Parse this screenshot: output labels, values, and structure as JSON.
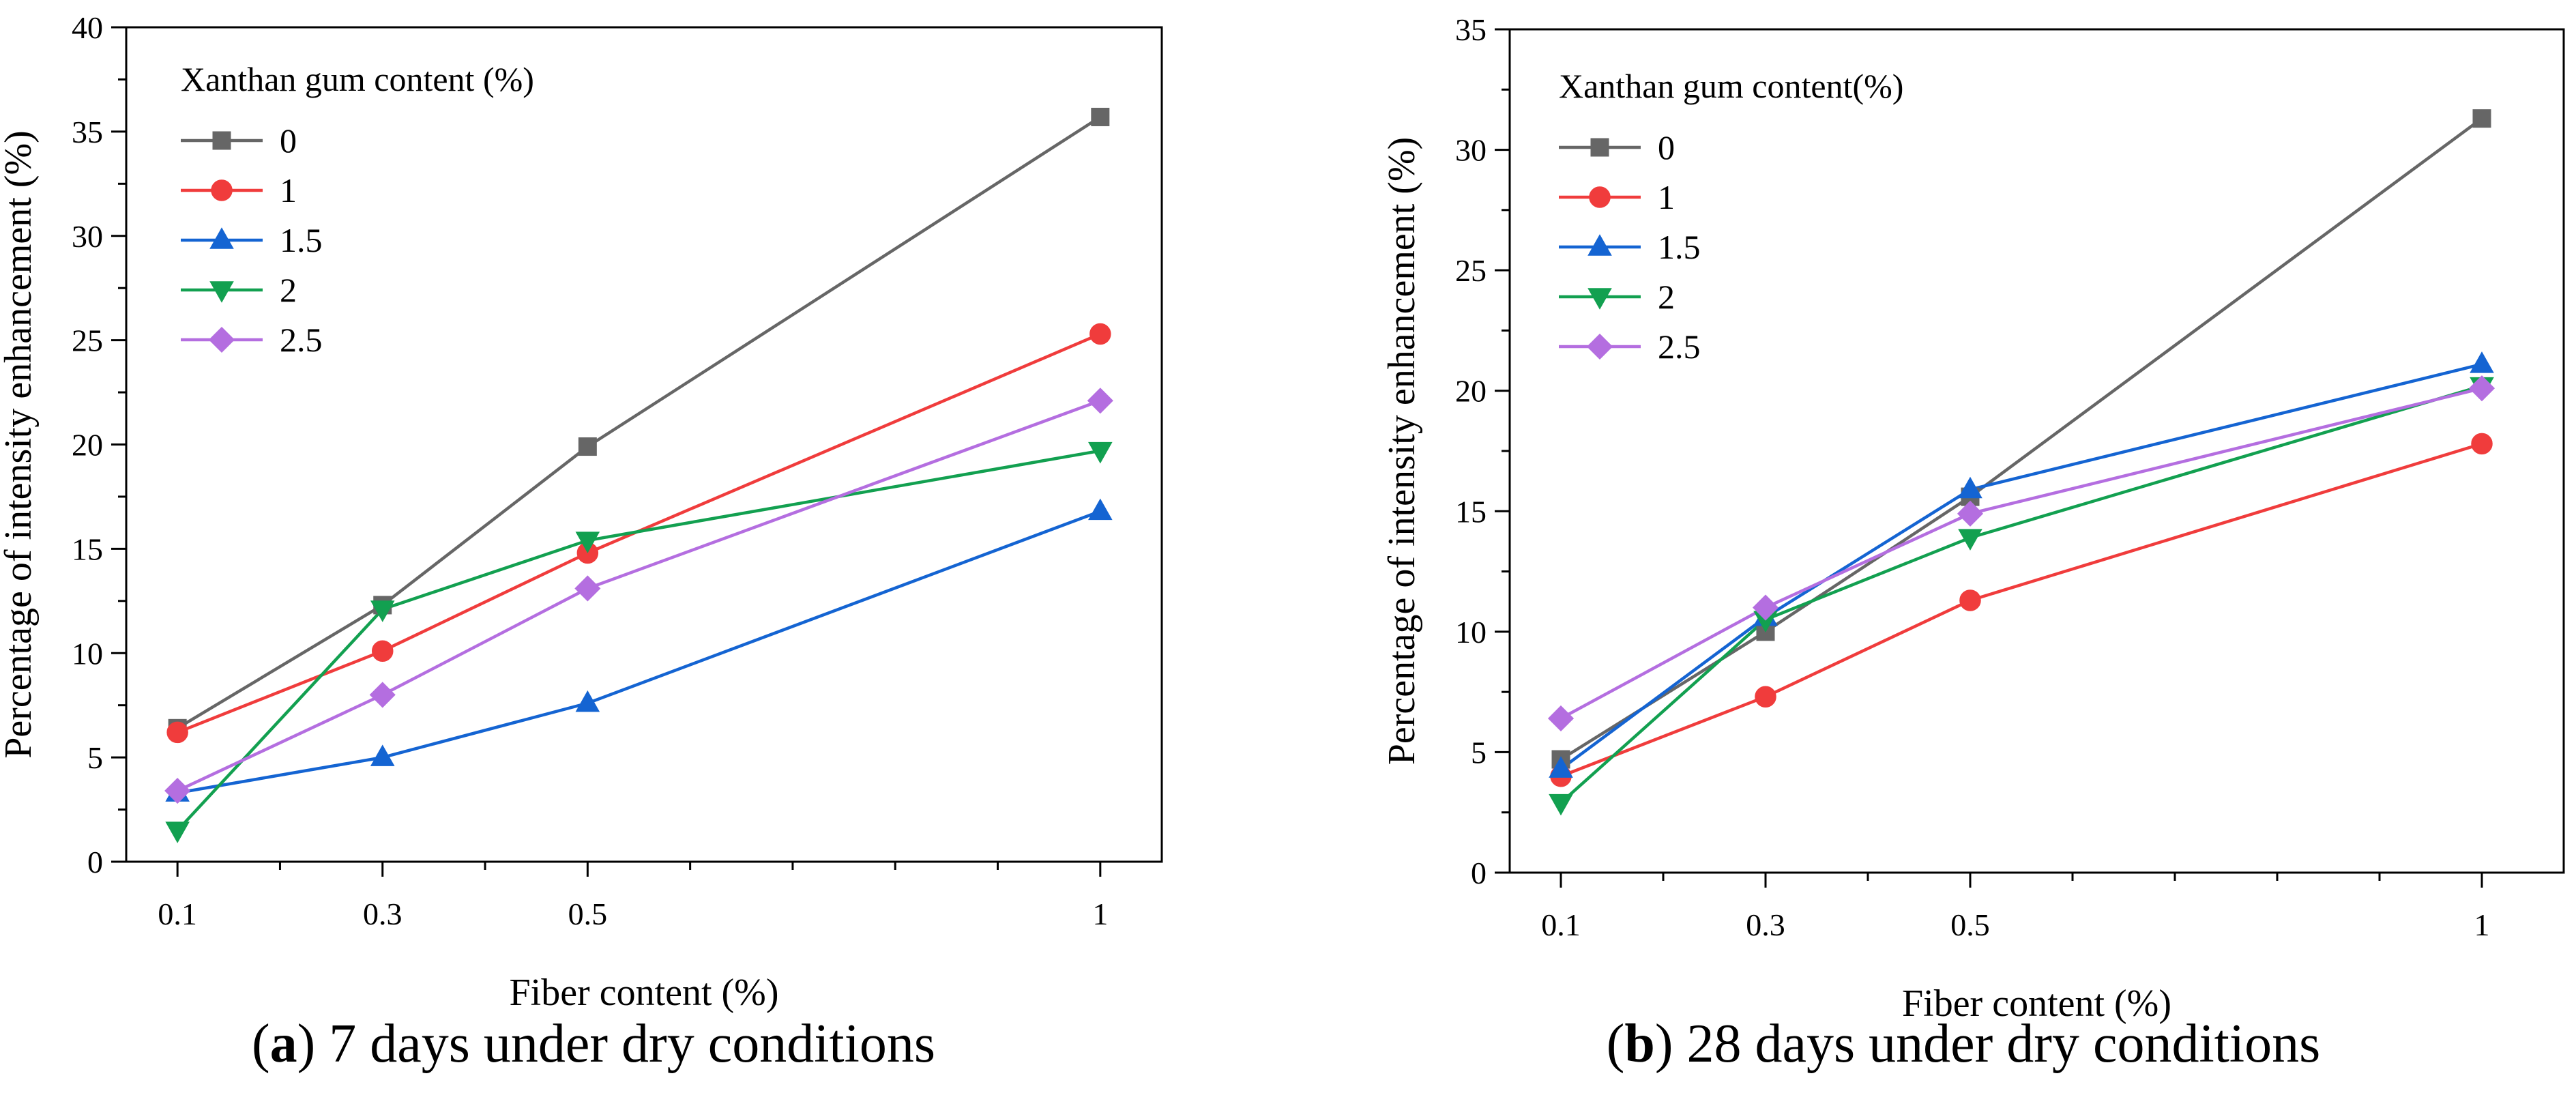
{
  "figure": {
    "panels": [
      {
        "letter": "a",
        "caption": " 7 days under dry conditions"
      },
      {
        "letter": "b",
        "caption": " 28 days under dry conditions"
      }
    ]
  },
  "chart_data": [
    {
      "type": "line",
      "xlabel": "Fiber content (%)",
      "ylabel": "Percentage of intensity enhancement (%)",
      "ylim": [
        0,
        40
      ],
      "yticks": [
        0,
        5,
        10,
        15,
        20,
        25,
        30,
        35,
        40
      ],
      "xlim": [
        0.05,
        1.06
      ],
      "xticks": [
        0.1,
        0.3,
        0.5,
        1
      ],
      "xtick_labels": [
        "0.1",
        "0.3",
        "0.5",
        "1"
      ],
      "x_minor_ticks": [
        0.2,
        0.4,
        0.6,
        0.7,
        0.8,
        0.9
      ],
      "legend_title": "Xanthan gum content (%)",
      "legend_position": "top-left",
      "x": [
        0.1,
        0.3,
        0.5,
        1
      ],
      "series": [
        {
          "name": "0",
          "color": "#666666",
          "marker": "square",
          "values": [
            6.4,
            12.3,
            19.9,
            35.7
          ]
        },
        {
          "name": "1",
          "color": "#f03c3c",
          "marker": "circle",
          "values": [
            6.2,
            10.1,
            14.8,
            25.3
          ]
        },
        {
          "name": "1.5",
          "color": "#1464d2",
          "marker": "triangle-up",
          "values": [
            3.3,
            5.0,
            7.6,
            16.8
          ]
        },
        {
          "name": "2",
          "color": "#12a050",
          "marker": "triangle-down",
          "values": [
            1.5,
            12.1,
            15.4,
            19.7
          ]
        },
        {
          "name": "2.5",
          "color": "#b46ee0",
          "marker": "diamond",
          "values": [
            3.4,
            8.0,
            13.1,
            22.1
          ]
        }
      ]
    },
    {
      "type": "line",
      "xlabel": "Fiber content (%)",
      "ylabel": "Percentage of intensity enhancement (%)",
      "ylim": [
        0,
        35
      ],
      "yticks": [
        0,
        5,
        10,
        15,
        20,
        25,
        30,
        35
      ],
      "xlim": [
        0.05,
        1.08
      ],
      "xticks": [
        0.1,
        0.3,
        0.5,
        1
      ],
      "xtick_labels": [
        "0.1",
        "0.3",
        "0.5",
        "1"
      ],
      "x_minor_ticks": [
        0.2,
        0.4,
        0.6,
        0.7,
        0.8,
        0.9
      ],
      "legend_title": "Xanthan gum content(%)",
      "legend_position": "top-left",
      "x": [
        0.1,
        0.3,
        0.5,
        1
      ],
      "series": [
        {
          "name": "0",
          "color": "#666666",
          "marker": "square",
          "values": [
            4.7,
            10.0,
            15.6,
            31.3
          ]
        },
        {
          "name": "1",
          "color": "#f03c3c",
          "marker": "circle",
          "values": [
            4.0,
            7.3,
            11.3,
            17.8
          ]
        },
        {
          "name": "1.5",
          "color": "#1464d2",
          "marker": "triangle-up",
          "values": [
            4.3,
            10.6,
            15.9,
            21.1
          ]
        },
        {
          "name": "2",
          "color": "#12a050",
          "marker": "triangle-down",
          "values": [
            2.9,
            10.5,
            13.9,
            20.2
          ]
        },
        {
          "name": "2.5",
          "color": "#b46ee0",
          "marker": "diamond",
          "values": [
            6.4,
            11.0,
            14.9,
            20.1
          ]
        }
      ]
    }
  ]
}
